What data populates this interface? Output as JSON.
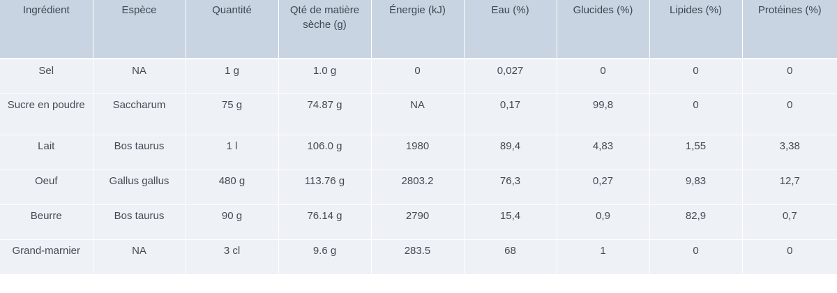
{
  "table": {
    "headers": [
      "Ingrédient",
      "Espèce",
      "Quantité",
      "Qté de matière sèche (g)",
      "Énergie (kJ)",
      "Eau (%)",
      "Glucides (%)",
      "Lipides (%)",
      "Protéines (%)"
    ],
    "rows": [
      [
        "Sel",
        "NA",
        "1 g",
        "1.0 g",
        "0",
        "0,027",
        "0",
        "0",
        "0"
      ],
      [
        "Sucre en poudre",
        "Saccharum",
        "75 g",
        "74.87 g",
        "NA",
        "0,17",
        "99,8",
        "0",
        "0"
      ],
      [
        "Lait",
        "Bos taurus",
        "1 l",
        "106.0 g",
        "1980",
        "89,4",
        "4,83",
        "1,55",
        "3,38"
      ],
      [
        "Oeuf",
        "Gallus gallus",
        "480 g",
        "113.76 g",
        "2803.2",
        "76,3",
        "0,27",
        "9,83",
        "12,7"
      ],
      [
        "Beurre",
        "Bos taurus",
        "90 g",
        "76.14 g",
        "2790",
        "15,4",
        "0,9",
        "82,9",
        "0,7"
      ],
      [
        "Grand-marnier",
        "NA",
        "3 cl",
        "9.6 g",
        "283.5",
        "68",
        "1",
        "0",
        "0"
      ]
    ]
  }
}
